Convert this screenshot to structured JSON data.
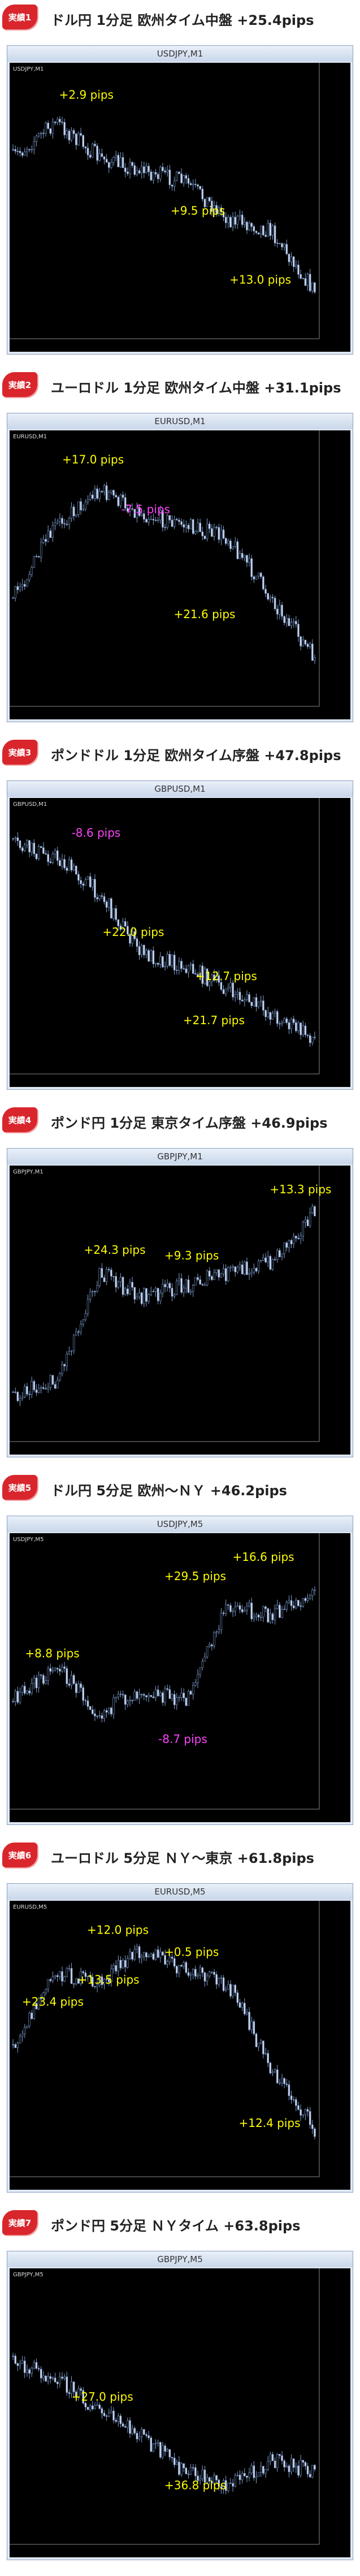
{
  "sections": [
    {
      "badge": "実績1",
      "heading": "ドル円 1分足 欧州タイム中盤 +25.4pips",
      "window_title": "USDJPY,M1",
      "annotations": [
        {
          "text": "+2.9 pips",
          "color": "#ffff00"
        },
        {
          "text": "+9.5 pips",
          "color": "#ffff00"
        },
        {
          "text": "+13.0 pips",
          "color": "#ffff00"
        }
      ]
    },
    {
      "badge": "実績2",
      "heading": "ユーロドル 1分足 欧州タイム中盤 +31.1pips",
      "window_title": "EURUSD,M1",
      "annotations": [
        {
          "text": "+17.0 pips",
          "color": "#ffff00"
        },
        {
          "text": "-7.5 pips",
          "color": "#ff44ff"
        },
        {
          "text": "+21.6 pips",
          "color": "#ffff00"
        }
      ]
    },
    {
      "badge": "実績3",
      "heading": "ポンドドル 1分足 欧州タイム序盤 +47.8pips",
      "window_title": "GBPUSD,M1",
      "annotations": [
        {
          "text": "-8.6 pips",
          "color": "#ff44ff"
        },
        {
          "text": "+22.0 pips",
          "color": "#ffff00"
        },
        {
          "text": "+12.7 pips",
          "color": "#ffff00"
        },
        {
          "text": "+21.7 pips",
          "color": "#ffff00"
        }
      ]
    },
    {
      "badge": "実績4",
      "heading": "ポンド円 1分足 東京タイム序盤 +46.9pips",
      "window_title": "GBPJPY,M1",
      "annotations": [
        {
          "text": "+13.3 pips",
          "color": "#ffff00"
        },
        {
          "text": "+24.3 pips",
          "color": "#ffff00"
        },
        {
          "text": "+9.3 pips",
          "color": "#ffff00"
        }
      ]
    },
    {
      "badge": "実績5",
      "heading": "ドル円 5分足 欧州～ＮＹ +46.2pips",
      "window_title": "USDJPY,M5",
      "annotations": [
        {
          "text": "+16.6 pips",
          "color": "#ffff00"
        },
        {
          "text": "+29.5 pips",
          "color": "#ffff00"
        },
        {
          "text": "+8.8 pips",
          "color": "#ffff00"
        },
        {
          "text": "-8.7 pips",
          "color": "#ff44ff"
        }
      ]
    },
    {
      "badge": "実績6",
      "heading": "ユーロドル 5分足 ＮＹ～東京 +61.8pips",
      "window_title": "EURUSD,M5",
      "annotations": [
        {
          "text": "+12.0 pips",
          "color": "#ffff00"
        },
        {
          "text": "+0.5 pips",
          "color": "#ffff00"
        },
        {
          "text": "+13.5 pips",
          "color": "#ffff00"
        },
        {
          "text": "+23.4 pips",
          "color": "#ffff00"
        },
        {
          "text": "+12.4 pips",
          "color": "#ffff00"
        }
      ]
    },
    {
      "badge": "実績7",
      "heading": "ポンド円 5分足 ＮＹタイム +63.8pips",
      "window_title": "GBPJPY,M5",
      "annotations": [
        {
          "text": "+27.0 pips",
          "color": "#ffff00"
        },
        {
          "text": "+36.8 pips",
          "color": "#ffff00"
        }
      ]
    }
  ]
}
